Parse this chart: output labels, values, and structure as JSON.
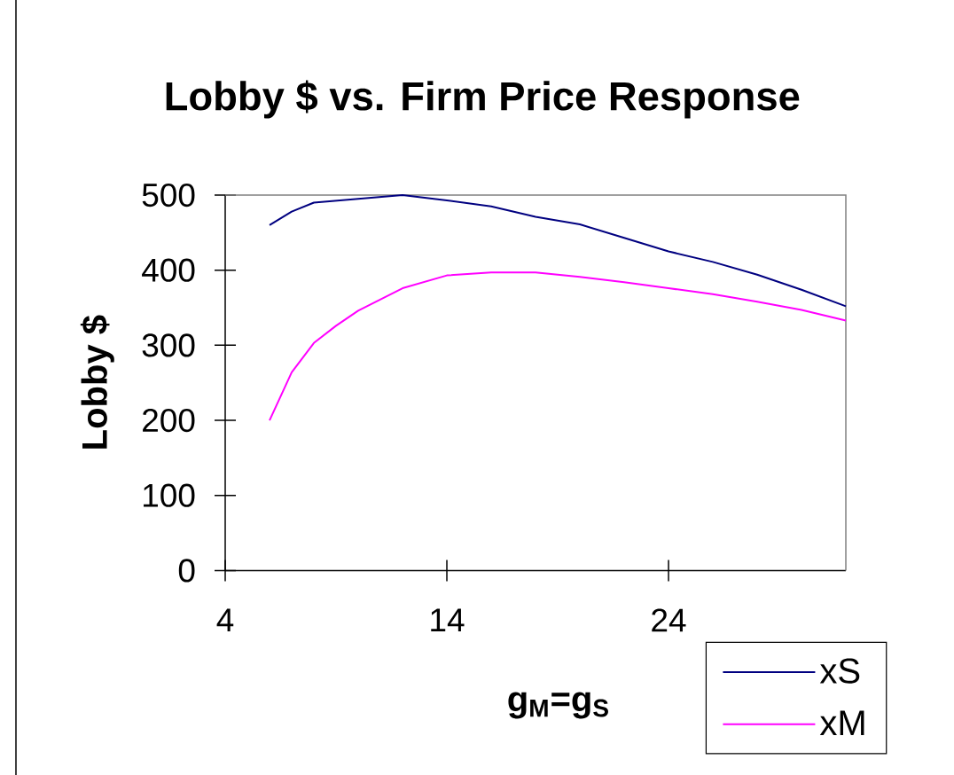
{
  "chart_data": {
    "type": "line",
    "title": "Lobby $ vs. Firm Price Response",
    "xlabel": "g$_{M}$=g$_{S}$",
    "ylabel": "Lobby $",
    "xlim": [
      4,
      32
    ],
    "xticks": [
      4,
      14,
      24
    ],
    "ylim": [
      0,
      500
    ],
    "yticks": [
      0,
      100,
      200,
      300,
      400,
      500
    ],
    "legend": "bottom right",
    "marker": "none",
    "line_style": "solid",
    "series": [
      {
        "name": "xS",
        "color": "#000080",
        "x": [
          6,
          7,
          8,
          10,
          12,
          14,
          16,
          18,
          20,
          22,
          24,
          26,
          28,
          30,
          32
        ],
        "values": [
          460,
          478,
          490,
          495,
          500,
          493,
          485,
          471,
          461,
          443,
          425,
          411,
          394,
          374,
          352
        ]
      },
      {
        "name": "xM",
        "color": "#ff00ff",
        "x": [
          6,
          7,
          8,
          9,
          10,
          12,
          14,
          16,
          18,
          20,
          22,
          24,
          26,
          28,
          30,
          32
        ],
        "values": [
          200,
          264,
          303,
          326,
          346,
          376,
          393,
          397,
          397,
          391,
          384,
          376,
          368,
          358,
          347,
          333
        ]
      }
    ]
  }
}
